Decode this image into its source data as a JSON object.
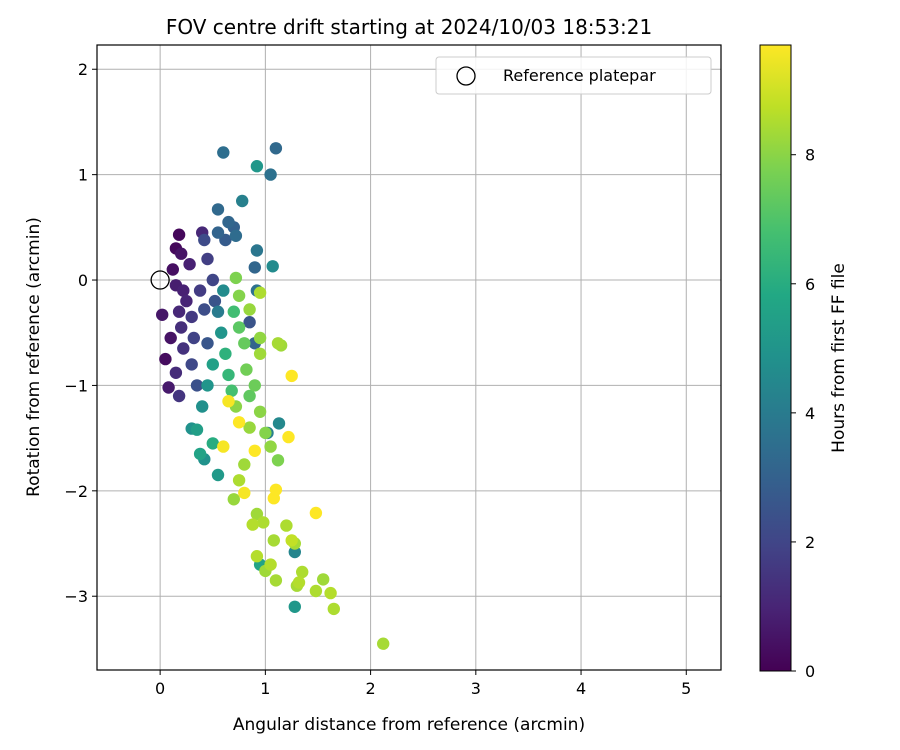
{
  "chart_data": {
    "type": "scatter",
    "title": "FOV centre drift starting at 2024/10/03 18:53:21",
    "xlabel": "Angular distance from reference (arcmin)",
    "ylabel": "Rotation from reference (arcmin)",
    "xlim": [
      -0.6,
      5.33
    ],
    "ylim": [
      -3.7,
      2.23
    ],
    "xticks": [
      0,
      1,
      2,
      3,
      4,
      5
    ],
    "yticks": [
      -3,
      -2,
      -1,
      0,
      1,
      2
    ],
    "grid": true,
    "legend": {
      "placement": "top-right",
      "entries": [
        "Reference platepar"
      ]
    },
    "reference_point": {
      "name": "Reference platepar",
      "x": 0,
      "y": 0
    },
    "colorbar": {
      "label": "Hours from first FF file",
      "range": [
        0,
        9.7
      ],
      "ticks": [
        0,
        2,
        4,
        6,
        8
      ],
      "colormap": "viridis"
    },
    "series": [
      {
        "name": "Reference platepar",
        "points": [
          {
            "x": 0.02,
            "y": -0.33,
            "h": 0.6
          },
          {
            "x": 0.05,
            "y": -0.75,
            "h": 0.3
          },
          {
            "x": 0.08,
            "y": -1.02,
            "h": 0.7
          },
          {
            "x": 0.1,
            "y": -0.55,
            "h": 0.5
          },
          {
            "x": 0.12,
            "y": 0.1,
            "h": 0.4
          },
          {
            "x": 0.15,
            "y": 0.3,
            "h": 0.2
          },
          {
            "x": 0.18,
            "y": 0.43,
            "h": 0.2
          },
          {
            "x": 0.2,
            "y": 0.25,
            "h": 0.5
          },
          {
            "x": 0.22,
            "y": -0.1,
            "h": 0.9
          },
          {
            "x": 0.25,
            "y": -0.2,
            "h": 1.0
          },
          {
            "x": 0.15,
            "y": -0.05,
            "h": 0.8
          },
          {
            "x": 0.18,
            "y": -0.3,
            "h": 1.1
          },
          {
            "x": 0.2,
            "y": -0.45,
            "h": 1.3
          },
          {
            "x": 0.22,
            "y": -0.65,
            "h": 1.4
          },
          {
            "x": 0.15,
            "y": -0.88,
            "h": 1.2
          },
          {
            "x": 0.18,
            "y": -1.1,
            "h": 1.5
          },
          {
            "x": 0.28,
            "y": 0.15,
            "h": 0.9
          },
          {
            "x": 0.3,
            "y": -0.35,
            "h": 1.6
          },
          {
            "x": 0.32,
            "y": -0.55,
            "h": 1.9
          },
          {
            "x": 0.3,
            "y": -0.8,
            "h": 2.1
          },
          {
            "x": 0.35,
            "y": -1.0,
            "h": 2.4
          },
          {
            "x": 0.4,
            "y": 0.45,
            "h": 1.1
          },
          {
            "x": 0.42,
            "y": 0.38,
            "h": 2.2
          },
          {
            "x": 0.45,
            "y": 0.2,
            "h": 1.8
          },
          {
            "x": 0.38,
            "y": -0.1,
            "h": 1.7
          },
          {
            "x": 0.42,
            "y": -0.28,
            "h": 2.3
          },
          {
            "x": 0.45,
            "y": -0.6,
            "h": 2.6
          },
          {
            "x": 0.5,
            "y": 0.0,
            "h": 2.0
          },
          {
            "x": 0.52,
            "y": -0.2,
            "h": 2.5
          },
          {
            "x": 0.55,
            "y": 0.45,
            "h": 3.1
          },
          {
            "x": 0.55,
            "y": 0.67,
            "h": 3.3
          },
          {
            "x": 0.6,
            "y": 1.21,
            "h": 3.5
          },
          {
            "x": 0.62,
            "y": 0.38,
            "h": 2.8
          },
          {
            "x": 0.65,
            "y": 0.55,
            "h": 3.2
          },
          {
            "x": 0.7,
            "y": 0.5,
            "h": 3.0
          },
          {
            "x": 0.72,
            "y": 0.42,
            "h": 3.4
          },
          {
            "x": 0.78,
            "y": 0.75,
            "h": 4.2
          },
          {
            "x": 0.92,
            "y": 1.08,
            "h": 5.1
          },
          {
            "x": 1.05,
            "y": 1.0,
            "h": 3.6
          },
          {
            "x": 1.1,
            "y": 1.25,
            "h": 3.3
          },
          {
            "x": 0.92,
            "y": 0.28,
            "h": 3.8
          },
          {
            "x": 0.9,
            "y": 0.12,
            "h": 3.2
          },
          {
            "x": 1.07,
            "y": 0.13,
            "h": 4.6
          },
          {
            "x": 0.92,
            "y": -0.1,
            "h": 3.6
          },
          {
            "x": 0.85,
            "y": -0.4,
            "h": 2.5
          },
          {
            "x": 0.9,
            "y": -0.6,
            "h": 3.1
          },
          {
            "x": 0.55,
            "y": -0.3,
            "h": 4.0
          },
          {
            "x": 0.6,
            "y": -0.1,
            "h": 4.6
          },
          {
            "x": 0.58,
            "y": -0.5,
            "h": 5.0
          },
          {
            "x": 0.5,
            "y": -0.8,
            "h": 5.5
          },
          {
            "x": 0.45,
            "y": -1.0,
            "h": 5.0
          },
          {
            "x": 0.4,
            "y": -1.2,
            "h": 4.8
          },
          {
            "x": 0.35,
            "y": -1.42,
            "h": 5.4
          },
          {
            "x": 0.3,
            "y": -1.41,
            "h": 4.9
          },
          {
            "x": 0.38,
            "y": -1.65,
            "h": 5.6
          },
          {
            "x": 0.42,
            "y": -1.7,
            "h": 4.9
          },
          {
            "x": 0.55,
            "y": -1.85,
            "h": 5.2
          },
          {
            "x": 0.5,
            "y": -1.55,
            "h": 6.0
          },
          {
            "x": 0.62,
            "y": -0.7,
            "h": 6.2
          },
          {
            "x": 0.65,
            "y": -0.9,
            "h": 6.4
          },
          {
            "x": 0.68,
            "y": -1.05,
            "h": 6.8
          },
          {
            "x": 0.7,
            "y": -0.3,
            "h": 6.7
          },
          {
            "x": 0.72,
            "y": 0.02,
            "h": 7.8
          },
          {
            "x": 0.75,
            "y": -0.15,
            "h": 7.9
          },
          {
            "x": 0.75,
            "y": -0.45,
            "h": 7.2
          },
          {
            "x": 0.8,
            "y": -0.6,
            "h": 7.4
          },
          {
            "x": 0.82,
            "y": -0.85,
            "h": 7.6
          },
          {
            "x": 0.85,
            "y": -1.1,
            "h": 7.3
          },
          {
            "x": 0.95,
            "y": -0.55,
            "h": 8.1
          },
          {
            "x": 0.95,
            "y": -0.7,
            "h": 8.3
          },
          {
            "x": 1.12,
            "y": -0.6,
            "h": 8.4
          },
          {
            "x": 0.9,
            "y": -1.0,
            "h": 7.5
          },
          {
            "x": 0.72,
            "y": -1.2,
            "h": 8.0
          },
          {
            "x": 0.65,
            "y": -1.15,
            "h": 9.6
          },
          {
            "x": 0.75,
            "y": -1.35,
            "h": 9.7
          },
          {
            "x": 0.6,
            "y": -1.58,
            "h": 9.6
          },
          {
            "x": 0.9,
            "y": -1.62,
            "h": 9.7
          },
          {
            "x": 0.85,
            "y": -1.4,
            "h": 8.2
          },
          {
            "x": 0.95,
            "y": -1.25,
            "h": 8.0
          },
          {
            "x": 1.0,
            "y": -1.45,
            "h": 7.9
          },
          {
            "x": 1.02,
            "y": -1.45,
            "h": 4.2
          },
          {
            "x": 1.05,
            "y": -1.58,
            "h": 8.1
          },
          {
            "x": 1.12,
            "y": -1.71,
            "h": 7.8
          },
          {
            "x": 1.13,
            "y": -1.36,
            "h": 4.5
          },
          {
            "x": 1.22,
            "y": -1.49,
            "h": 9.7
          },
          {
            "x": 1.25,
            "y": -0.91,
            "h": 9.7
          },
          {
            "x": 0.8,
            "y": -1.75,
            "h": 8.3
          },
          {
            "x": 0.75,
            "y": -1.9,
            "h": 8.5
          },
          {
            "x": 0.7,
            "y": -2.08,
            "h": 8.2
          },
          {
            "x": 0.8,
            "y": -2.02,
            "h": 9.6
          },
          {
            "x": 1.08,
            "y": -2.07,
            "h": 9.7
          },
          {
            "x": 1.1,
            "y": -1.99,
            "h": 9.7
          },
          {
            "x": 0.92,
            "y": -2.22,
            "h": 8.3
          },
          {
            "x": 0.88,
            "y": -2.32,
            "h": 8.6
          },
          {
            "x": 0.98,
            "y": -2.3,
            "h": 8.5
          },
          {
            "x": 1.08,
            "y": -2.47,
            "h": 8.4
          },
          {
            "x": 1.2,
            "y": -2.33,
            "h": 8.5
          },
          {
            "x": 1.25,
            "y": -2.47,
            "h": 8.8
          },
          {
            "x": 1.28,
            "y": -2.5,
            "h": 8.4
          },
          {
            "x": 1.28,
            "y": -2.58,
            "h": 4.4
          },
          {
            "x": 1.48,
            "y": -2.21,
            "h": 9.7
          },
          {
            "x": 0.92,
            "y": -2.62,
            "h": 8.6
          },
          {
            "x": 0.95,
            "y": -2.7,
            "h": 5.6
          },
          {
            "x": 1.05,
            "y": -2.7,
            "h": 8.6
          },
          {
            "x": 1.0,
            "y": -2.76,
            "h": 8.3
          },
          {
            "x": 1.1,
            "y": -2.85,
            "h": 8.4
          },
          {
            "x": 1.32,
            "y": -2.87,
            "h": 8.6
          },
          {
            "x": 1.35,
            "y": -2.77,
            "h": 8.5
          },
          {
            "x": 1.3,
            "y": -2.9,
            "h": 8.4
          },
          {
            "x": 1.48,
            "y": -2.95,
            "h": 8.5
          },
          {
            "x": 1.55,
            "y": -2.84,
            "h": 8.3
          },
          {
            "x": 1.62,
            "y": -2.97,
            "h": 8.6
          },
          {
            "x": 1.65,
            "y": -3.12,
            "h": 8.5
          },
          {
            "x": 1.28,
            "y": -3.1,
            "h": 5.1
          },
          {
            "x": 2.12,
            "y": -3.45,
            "h": 8.4
          },
          {
            "x": 1.15,
            "y": -0.62,
            "h": 8.3
          },
          {
            "x": 0.95,
            "y": -0.12,
            "h": 8.5
          },
          {
            "x": 0.85,
            "y": -0.28,
            "h": 8.2
          }
        ]
      }
    ]
  }
}
